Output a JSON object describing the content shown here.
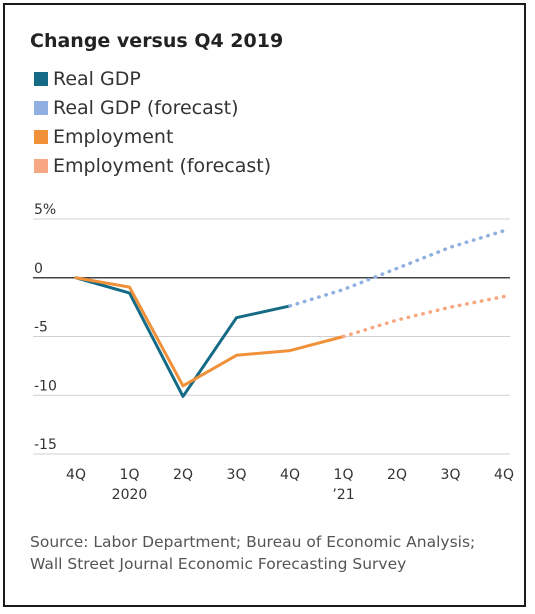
{
  "title": "Change versus Q4 2019",
  "legend": [
    {
      "label": "Real GDP",
      "color": "#156b86"
    },
    {
      "label": "Real GDP (forecast)",
      "color": "#8fb0e0"
    },
    {
      "label": "Employment",
      "color": "#f0913a"
    },
    {
      "label": "Employment (forecast)",
      "color": "#f7a882"
    }
  ],
  "source": "Source: Labor Department; Bureau of Economic Analysis; Wall Street Journal Economic Forecasting Survey",
  "chart_data": {
    "type": "line",
    "title": "Change versus Q4 2019",
    "categories": [
      "4Q",
      "1Q",
      "2Q",
      "3Q",
      "4Q",
      "1Q",
      "2Q",
      "3Q",
      "4Q"
    ],
    "category_sublabels": [
      "",
      "2020",
      "",
      "",
      "",
      "’21",
      "",
      "",
      ""
    ],
    "y_ticks": [
      5,
      0,
      -5,
      -10,
      -15
    ],
    "y_tick_labels": [
      "5%",
      "0",
      "-5",
      "-10",
      "-15"
    ],
    "ylim": [
      -15,
      5
    ],
    "xlabel": "",
    "ylabel": "",
    "grid": true,
    "series": [
      {
        "name": "Real GDP",
        "color": "#156b86",
        "style": "solid",
        "values": [
          0,
          -1.3,
          -10.1,
          -3.4,
          -2.4,
          null,
          null,
          null,
          null
        ]
      },
      {
        "name": "Real GDP (forecast)",
        "color": "#8fb0e0",
        "style": "dotted",
        "values": [
          null,
          null,
          null,
          null,
          -2.4,
          -1.0,
          0.8,
          2.6,
          4.0
        ]
      },
      {
        "name": "Employment",
        "color": "#f0913a",
        "style": "solid",
        "values": [
          0,
          -0.8,
          -9.2,
          -6.6,
          -6.2,
          -5.0,
          null,
          null,
          null
        ]
      },
      {
        "name": "Employment (forecast)",
        "color": "#f7a882",
        "style": "dotted",
        "values": [
          null,
          null,
          null,
          null,
          null,
          -5.0,
          -3.6,
          -2.5,
          -1.6
        ]
      }
    ]
  }
}
